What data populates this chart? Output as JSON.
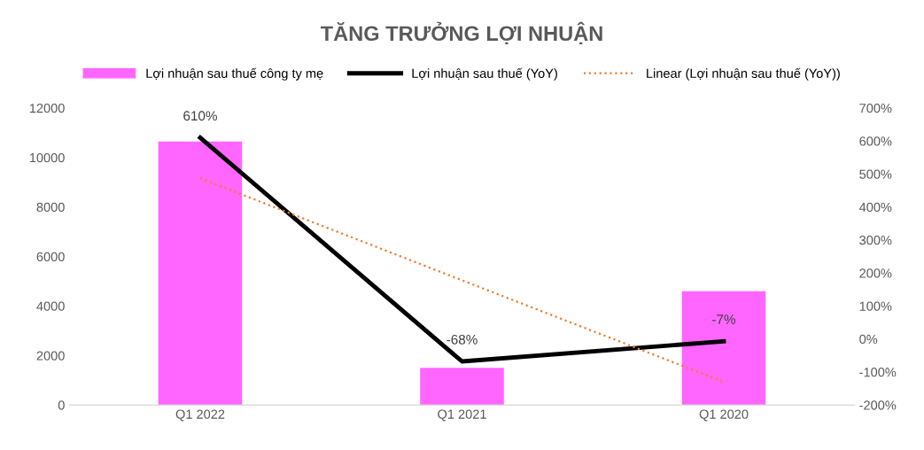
{
  "chart_data": {
    "type": "bar",
    "title": "TĂNG TRƯỞNG LỢI NHUẬN",
    "categories": [
      "Q1 2022",
      "Q1 2021",
      "Q1 2020"
    ],
    "series": [
      {
        "name": "Lợi nhuận sau thuế công ty mẹ",
        "color": "#ff66ff",
        "values": [
          10650,
          1500,
          4600
        ]
      },
      {
        "name": "Lợi nhuận sau thuế (YoY)",
        "type": "line",
        "axis": "y2",
        "color": "#000000",
        "values": [
          610,
          -68,
          -7
        ],
        "value_labels": [
          "610%",
          "-68%",
          "-7%"
        ],
        "line_style": "solid"
      },
      {
        "name": "Linear (Lợi nhuận sau thuế (YoY))",
        "type": "line",
        "axis": "y2",
        "color": "#ed7d31",
        "values": [
          487,
          178,
          -130
        ],
        "line_style": "dotted"
      }
    ],
    "ylim": [
      0,
      12000
    ],
    "yticks": [
      0,
      2000,
      4000,
      6000,
      8000,
      10000,
      12000
    ],
    "y2lim": [
      -200,
      700
    ],
    "y2ticks": [
      {
        "value": -200,
        "label": "-200%"
      },
      {
        "value": -100,
        "label": "-100%"
      },
      {
        "value": 0,
        "label": "0%"
      },
      {
        "value": 100,
        "label": "100%"
      },
      {
        "value": 200,
        "label": "200%"
      },
      {
        "value": 300,
        "label": "300%"
      },
      {
        "value": 400,
        "label": "400%"
      },
      {
        "value": 500,
        "label": "500%"
      },
      {
        "value": 600,
        "label": "600%"
      },
      {
        "value": 700,
        "label": "700%"
      }
    ],
    "legend": "top",
    "grid": false,
    "marker": "none"
  }
}
